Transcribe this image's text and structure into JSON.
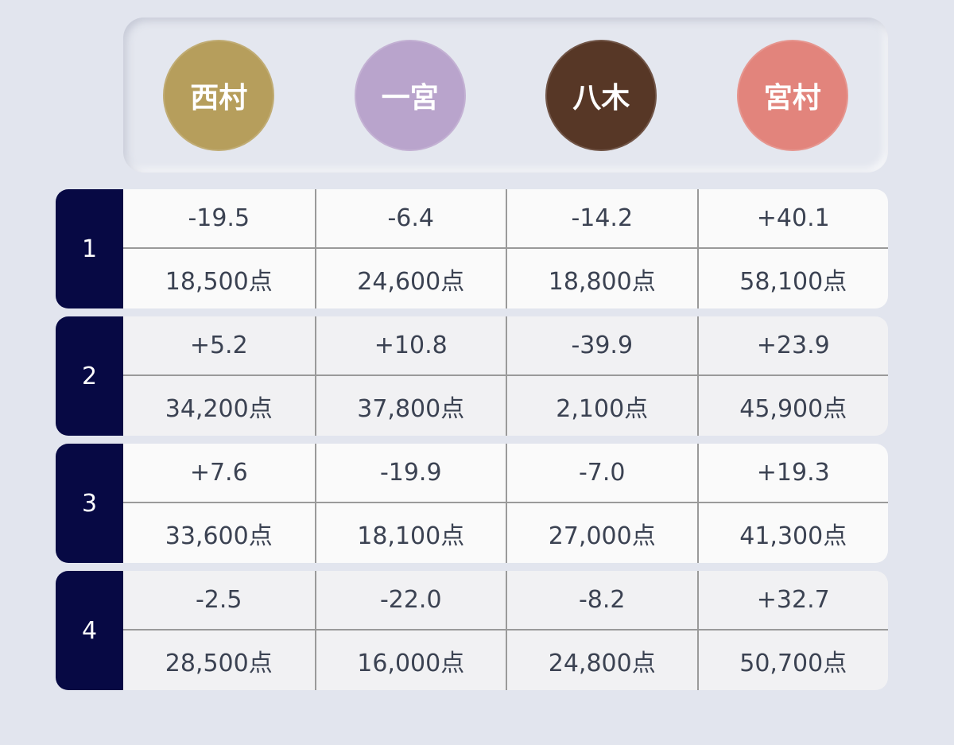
{
  "players": [
    {
      "name": "西村",
      "color": "#b69e5c"
    },
    {
      "name": "一宮",
      "color": "#b9a4cc"
    },
    {
      "name": "八木",
      "color": "#573726"
    },
    {
      "name": "宮村",
      "color": "#e2847c"
    }
  ],
  "rounds": [
    {
      "label": "1",
      "diffs": [
        "-19.5",
        "-6.4",
        "-14.2",
        "+40.1"
      ],
      "scores": [
        "18,500点",
        "24,600点",
        "18,800点",
        "58,100点"
      ]
    },
    {
      "label": "2",
      "diffs": [
        "+5.2",
        "+10.8",
        "-39.9",
        "+23.9"
      ],
      "scores": [
        "34,200点",
        "37,800点",
        "2,100点",
        "45,900点"
      ]
    },
    {
      "label": "3",
      "diffs": [
        "+7.6",
        "-19.9",
        "-7.0",
        "+19.3"
      ],
      "scores": [
        "33,600点",
        "18,100点",
        "27,000点",
        "41,300点"
      ]
    },
    {
      "label": "4",
      "diffs": [
        "-2.5",
        "-22.0",
        "-8.2",
        "+32.7"
      ],
      "scores": [
        "28,500点",
        "16,000点",
        "24,800点",
        "50,700点"
      ]
    }
  ]
}
